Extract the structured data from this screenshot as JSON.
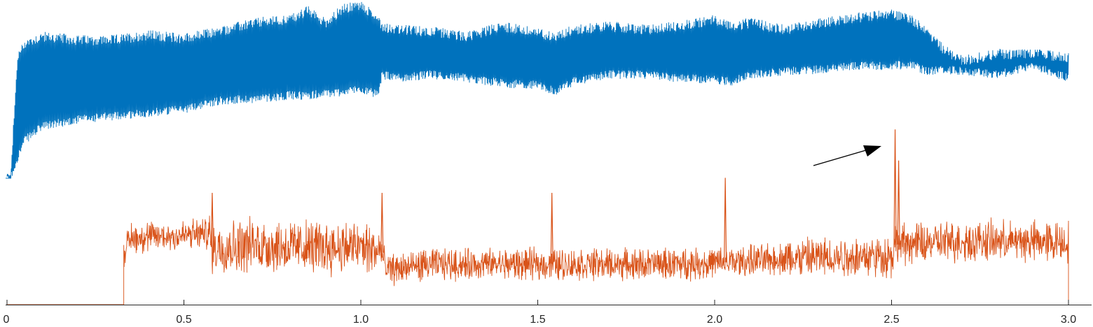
{
  "chart_data": {
    "type": "line",
    "title": "",
    "xlabel": "",
    "ylabel": "",
    "xlim": [
      0,
      3.0
    ],
    "x_ticks": [
      {
        "value": 0,
        "label": "0"
      },
      {
        "value": 0.5,
        "label": "0.5"
      },
      {
        "value": 1.0,
        "label": "1.0"
      },
      {
        "value": 1.5,
        "label": "1.5"
      },
      {
        "value": 2.0,
        "label": "2.0"
      },
      {
        "value": 2.5,
        "label": "2.5"
      },
      {
        "value": 3.0,
        "label": "3.0"
      }
    ],
    "y_axis_visible": false,
    "grid": false,
    "legend": "none",
    "series": [
      {
        "color": "#0072BD",
        "description": "dense oscillating trace, envelope in arbitrary units (0 = bottom of trace panel, 1 = top)",
        "start_x": 0.0,
        "envelope": {
          "x": [
            0.0,
            0.01,
            0.03,
            0.05,
            0.1,
            0.2,
            0.3,
            0.4,
            0.5,
            0.6,
            0.7,
            0.8,
            0.85,
            0.9,
            0.95,
            1.0,
            1.05,
            1.06,
            1.1,
            1.2,
            1.3,
            1.4,
            1.5,
            1.55,
            1.6,
            1.7,
            1.8,
            1.9,
            2.0,
            2.05,
            2.1,
            2.2,
            2.3,
            2.4,
            2.5,
            2.55,
            2.6,
            2.65,
            2.7,
            2.8,
            2.9,
            3.0
          ],
          "upper": [
            0.0,
            0.0,
            0.7,
            0.78,
            0.82,
            0.8,
            0.8,
            0.83,
            0.81,
            0.85,
            0.9,
            0.92,
            0.97,
            0.9,
            0.98,
            1.0,
            0.92,
            0.88,
            0.86,
            0.85,
            0.82,
            0.88,
            0.84,
            0.82,
            0.86,
            0.88,
            0.86,
            0.88,
            0.92,
            0.88,
            0.9,
            0.86,
            0.9,
            0.93,
            0.95,
            0.93,
            0.85,
            0.74,
            0.68,
            0.72,
            0.72,
            0.7
          ],
          "lower": [
            0.0,
            0.0,
            0.12,
            0.22,
            0.3,
            0.34,
            0.36,
            0.38,
            0.4,
            0.45,
            0.46,
            0.48,
            0.48,
            0.49,
            0.5,
            0.52,
            0.48,
            0.6,
            0.58,
            0.6,
            0.58,
            0.55,
            0.54,
            0.5,
            0.56,
            0.6,
            0.6,
            0.58,
            0.57,
            0.56,
            0.6,
            0.62,
            0.63,
            0.65,
            0.65,
            0.66,
            0.62,
            0.63,
            0.62,
            0.6,
            0.65,
            0.58
          ]
        }
      },
      {
        "color": "#D95319",
        "description": "noisy trace, zero until onset then fluctuating; arbitrary units (0 = baseline, 1 = top of trace panel)",
        "onset_x": 0.33,
        "end_x": 3.0,
        "baseline": {
          "x": [
            0.33,
            0.35,
            0.5,
            0.57,
            0.58,
            0.7,
            0.8,
            1.0,
            1.06,
            1.07,
            1.2,
            1.5,
            1.8,
            2.0,
            2.2,
            2.4,
            2.5,
            2.51,
            2.7,
            2.9,
            3.0
          ],
          "level": [
            0.45,
            0.58,
            0.6,
            0.62,
            0.5,
            0.52,
            0.5,
            0.5,
            0.45,
            0.3,
            0.35,
            0.35,
            0.35,
            0.36,
            0.4,
            0.42,
            0.42,
            0.52,
            0.55,
            0.55,
            0.55
          ]
        },
        "spikes": [
          {
            "x": 0.58,
            "value": 0.97
          },
          {
            "x": 1.06,
            "value": 0.97
          },
          {
            "x": 1.54,
            "value": 0.97
          },
          {
            "x": 2.03,
            "value": 1.1
          },
          {
            "x": 2.51,
            "value": 1.52
          },
          {
            "x": 2.52,
            "value": 1.25
          }
        ]
      }
    ],
    "annotations": [
      {
        "type": "arrow",
        "color": "#000000",
        "points_to_x": 2.51,
        "target": "orange spike"
      }
    ]
  }
}
